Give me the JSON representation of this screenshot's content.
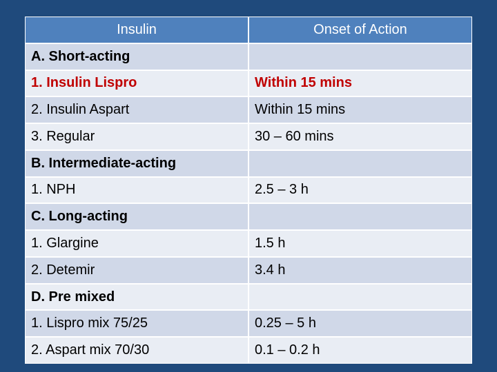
{
  "table": {
    "header": [
      "Insulin",
      "Onset of Action"
    ],
    "header_color": "#4f81bd",
    "row_colors": [
      "#d0d8e8",
      "#e9edf4"
    ],
    "rows": [
      {
        "insulin": "A. Short-acting",
        "bold": true
      },
      {
        "insulin": "1. Insulin Lispro",
        "onset": "Within 15 mins",
        "bold": true,
        "color": "#c00000"
      },
      {
        "insulin": "2. Insulin Aspart",
        "onset": "Within 15 mins"
      },
      {
        "insulin": "3. Regular",
        "onset": "30 – 60 mins"
      },
      {
        "insulin": "B. Intermediate-acting",
        "bold": true
      },
      {
        "insulin": "1. NPH",
        "onset": "2.5 – 3 h"
      },
      {
        "insulin": "C. Long-acting",
        "bold": true
      },
      {
        "insulin": "1. Glargine",
        "onset": "1.5 h"
      },
      {
        "insulin": "2. Detemir",
        "onset": "3.4 h"
      },
      {
        "insulin": "D. Pre mixed",
        "bold": true
      },
      {
        "insulin": "1. Lispro mix 75/25",
        "onset": "0.25 – 5 h"
      },
      {
        "insulin": "2. Aspart mix 70/30",
        "onset": "0.1 – 0.2 h"
      }
    ]
  }
}
